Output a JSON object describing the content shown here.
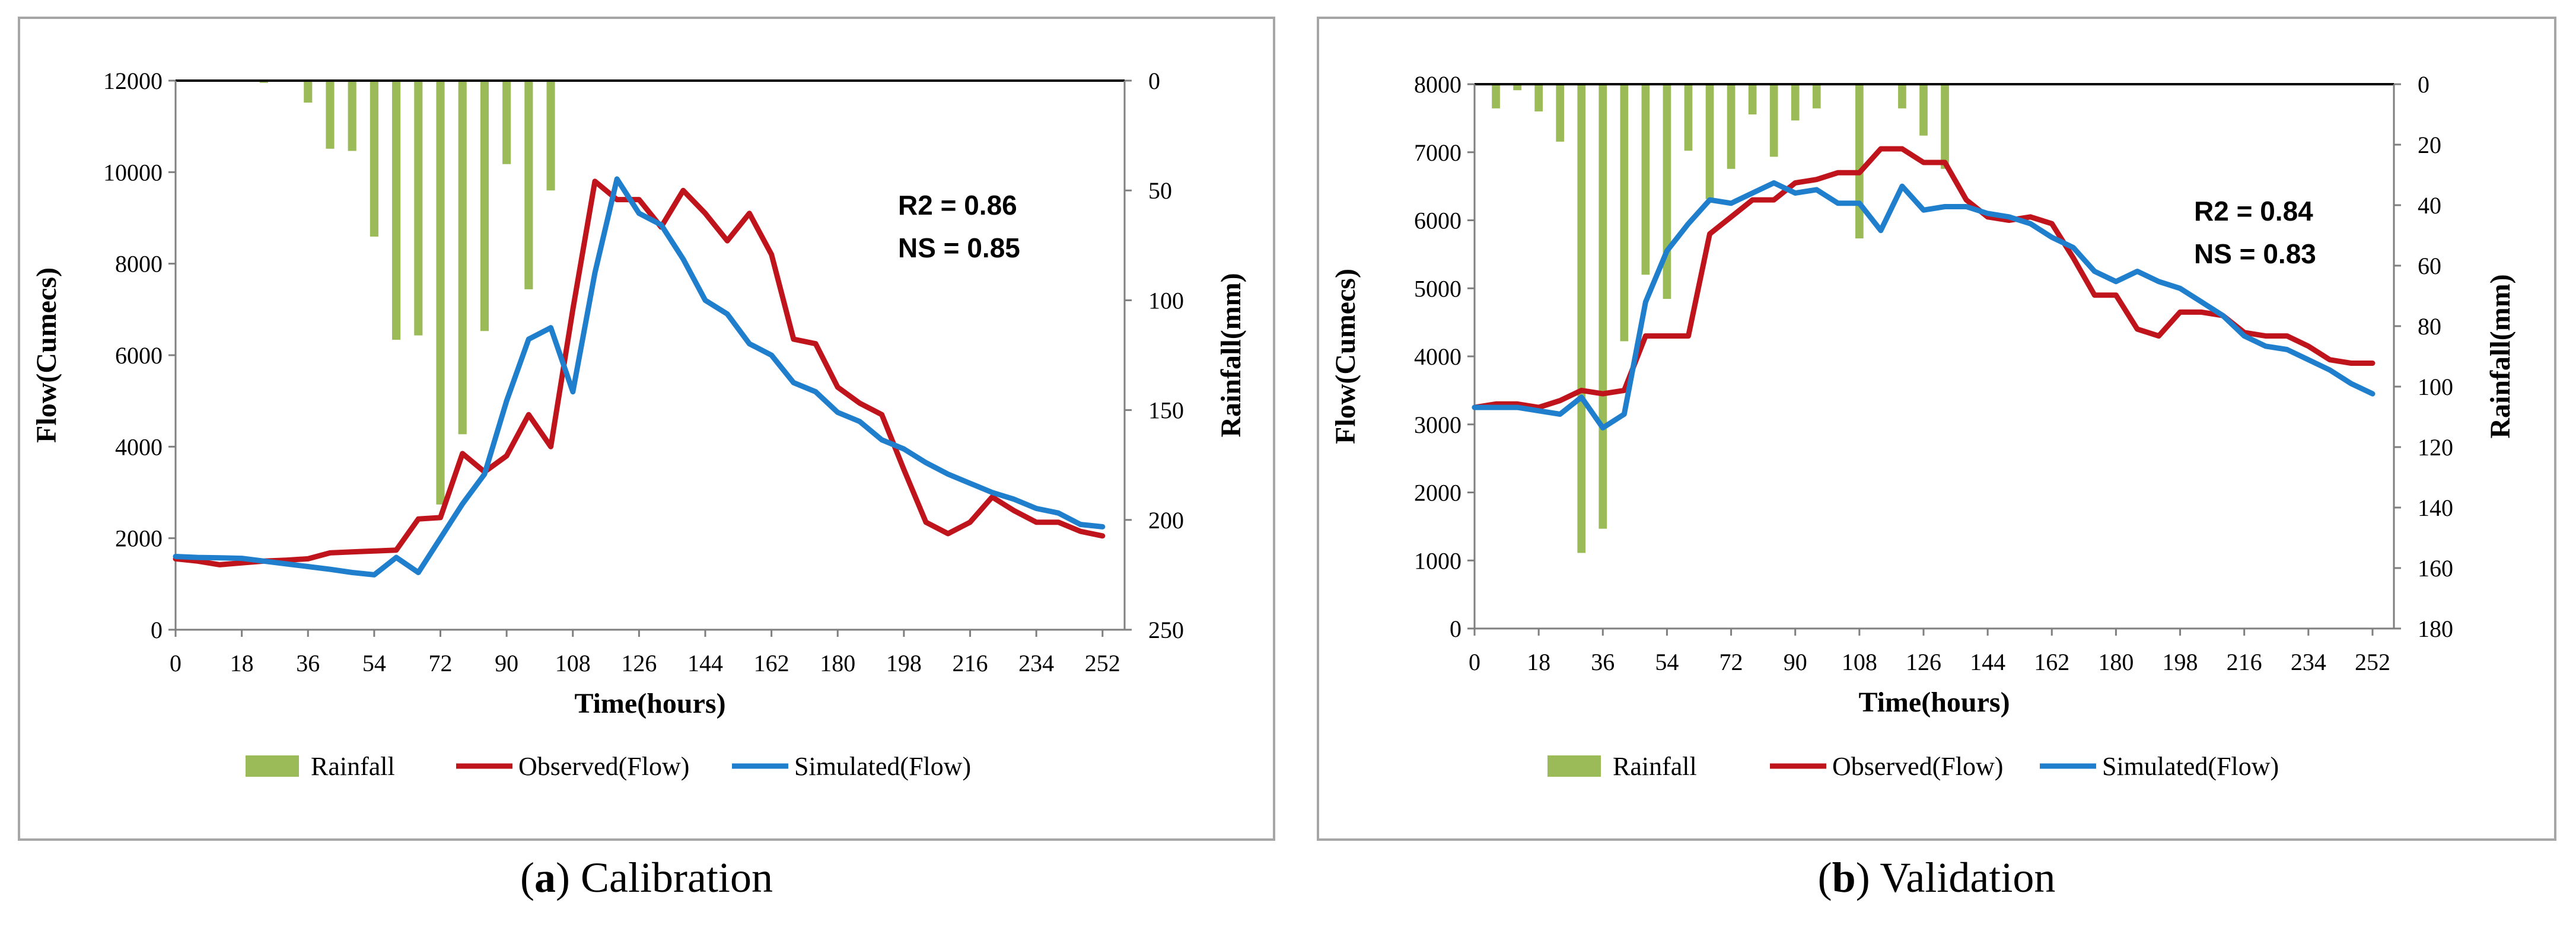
{
  "colors": {
    "rainfall": "#9bbb59",
    "observed": "#c0141c",
    "simulated": "#1f7fcc",
    "frame": "#a6a6a6"
  },
  "chart_data": [
    {
      "id": "a",
      "type": "line",
      "caption_letter": "a",
      "caption_text": ") Calibration",
      "caption_open": "(",
      "xlabel": "Time(hours)",
      "ylabel": "Flow(Cumecs)",
      "y2label": "Rainfall(mm)",
      "xticks": [
        0,
        18,
        36,
        54,
        72,
        90,
        108,
        126,
        144,
        162,
        180,
        198,
        216,
        234,
        252
      ],
      "xlim": [
        0,
        258
      ],
      "ylim": [
        0,
        12000
      ],
      "yticks": [
        0,
        2000,
        4000,
        6000,
        8000,
        10000,
        12000
      ],
      "y2lim": [
        0,
        250
      ],
      "y2ticks": [
        0,
        50,
        100,
        150,
        200,
        250
      ],
      "stats": [
        "R2 = 0.86",
        "NS = 0.85"
      ],
      "legend": [
        "Rainfall",
        "Observed(Flow)",
        "Simulated(Flow)"
      ],
      "rainfall": {
        "x": [
          24,
          36,
          42,
          48,
          54,
          60,
          66,
          72,
          78,
          84,
          90,
          96,
          102
        ],
        "values": [
          1,
          10,
          31,
          32,
          71,
          118,
          116,
          193,
          161,
          114,
          38,
          95,
          50
        ]
      },
      "observed": {
        "x": [
          0,
          6,
          12,
          18,
          24,
          30,
          36,
          42,
          48,
          54,
          60,
          66,
          72,
          78,
          84,
          90,
          96,
          102,
          108,
          114,
          120,
          126,
          132,
          138,
          144,
          150,
          156,
          162,
          168,
          174,
          180,
          186,
          192,
          198,
          204,
          210,
          216,
          222,
          228,
          234,
          240,
          246,
          252
        ],
        "values": [
          1550,
          1500,
          1420,
          1460,
          1500,
          1520,
          1550,
          1680,
          1700,
          1720,
          1740,
          2420,
          2450,
          3850,
          3450,
          3800,
          4700,
          4000,
          7000,
          9800,
          9400,
          9400,
          8800,
          9600,
          9100,
          8500,
          9100,
          8200,
          6350,
          6250,
          5300,
          4950,
          4700,
          3500,
          2350,
          2100,
          2350,
          2900,
          2600,
          2350,
          2350,
          2150,
          2050
        ]
      },
      "simulated": {
        "x": [
          0,
          6,
          12,
          18,
          24,
          30,
          36,
          42,
          48,
          54,
          60,
          66,
          72,
          78,
          84,
          90,
          96,
          102,
          108,
          114,
          120,
          126,
          132,
          138,
          144,
          150,
          156,
          162,
          168,
          174,
          180,
          186,
          192,
          198,
          204,
          210,
          216,
          222,
          228,
          234,
          240,
          246,
          252
        ],
        "values": [
          1600,
          1580,
          1570,
          1560,
          1500,
          1440,
          1380,
          1320,
          1250,
          1200,
          1580,
          1250,
          2000,
          2750,
          3400,
          5000,
          6350,
          6600,
          5200,
          7800,
          9850,
          9100,
          8850,
          8100,
          7200,
          6900,
          6250,
          6000,
          5400,
          5200,
          4750,
          4550,
          4150,
          3950,
          3650,
          3400,
          3200,
          3000,
          2850,
          2650,
          2550,
          2300,
          2250
        ]
      }
    },
    {
      "id": "b",
      "type": "line",
      "caption_letter": "b",
      "caption_text": ") Validation",
      "caption_open": "(",
      "xlabel": "Time(hours)",
      "ylabel": "Flow(Cumecs)",
      "y2label": "Rainfall(mm)",
      "xticks": [
        0,
        18,
        36,
        54,
        72,
        90,
        108,
        126,
        144,
        162,
        180,
        198,
        216,
        234,
        252
      ],
      "xlim": [
        0,
        258
      ],
      "ylim": [
        0,
        8000
      ],
      "yticks": [
        0,
        1000,
        2000,
        3000,
        4000,
        5000,
        6000,
        7000,
        8000
      ],
      "y2lim": [
        0,
        180
      ],
      "y2ticks": [
        0,
        20,
        40,
        60,
        80,
        100,
        120,
        140,
        160,
        180
      ],
      "stats": [
        "R2 = 0.84",
        "NS = 0.83"
      ],
      "legend": [
        "Rainfall",
        "Observed(Flow)",
        "Simulated(Flow)"
      ],
      "rainfall": {
        "x": [
          6,
          12,
          18,
          24,
          30,
          36,
          42,
          48,
          54,
          60,
          66,
          72,
          78,
          84,
          90,
          96,
          108,
          120,
          126,
          132
        ],
        "values": [
          8,
          2,
          9,
          19,
          155,
          147,
          85,
          63,
          71,
          22,
          38,
          28,
          10,
          24,
          12,
          8,
          51,
          8,
          17,
          28
        ]
      },
      "observed": {
        "x": [
          0,
          6,
          12,
          18,
          24,
          30,
          36,
          42,
          48,
          54,
          60,
          66,
          72,
          78,
          84,
          90,
          96,
          102,
          108,
          114,
          120,
          126,
          132,
          138,
          144,
          150,
          156,
          162,
          168,
          174,
          180,
          186,
          192,
          198,
          204,
          210,
          216,
          222,
          228,
          234,
          240,
          246,
          252
        ],
        "values": [
          3250,
          3300,
          3300,
          3250,
          3350,
          3500,
          3450,
          3500,
          4300,
          4300,
          4300,
          5800,
          6050,
          6300,
          6300,
          6550,
          6600,
          6700,
          6700,
          7050,
          7050,
          6850,
          6850,
          6300,
          6050,
          6000,
          6050,
          5950,
          5450,
          4900,
          4900,
          4400,
          4300,
          4650,
          4650,
          4600,
          4350,
          4300,
          4300,
          4150,
          3950,
          3900,
          3900
        ]
      },
      "simulated": {
        "x": [
          0,
          6,
          12,
          18,
          24,
          30,
          36,
          42,
          48,
          54,
          60,
          66,
          72,
          78,
          84,
          90,
          96,
          102,
          108,
          114,
          120,
          126,
          132,
          138,
          144,
          150,
          156,
          162,
          168,
          174,
          180,
          186,
          192,
          198,
          204,
          210,
          216,
          222,
          228,
          234,
          240,
          246,
          252
        ],
        "values": [
          3250,
          3250,
          3250,
          3200,
          3150,
          3400,
          2950,
          3150,
          4800,
          5550,
          5950,
          6300,
          6250,
          6400,
          6550,
          6400,
          6450,
          6250,
          6250,
          5850,
          6500,
          6150,
          6200,
          6200,
          6100,
          6050,
          5950,
          5750,
          5600,
          5250,
          5100,
          5250,
          5100,
          5000,
          4800,
          4600,
          4300,
          4150,
          4100,
          3950,
          3800,
          3600,
          3450
        ]
      }
    }
  ]
}
